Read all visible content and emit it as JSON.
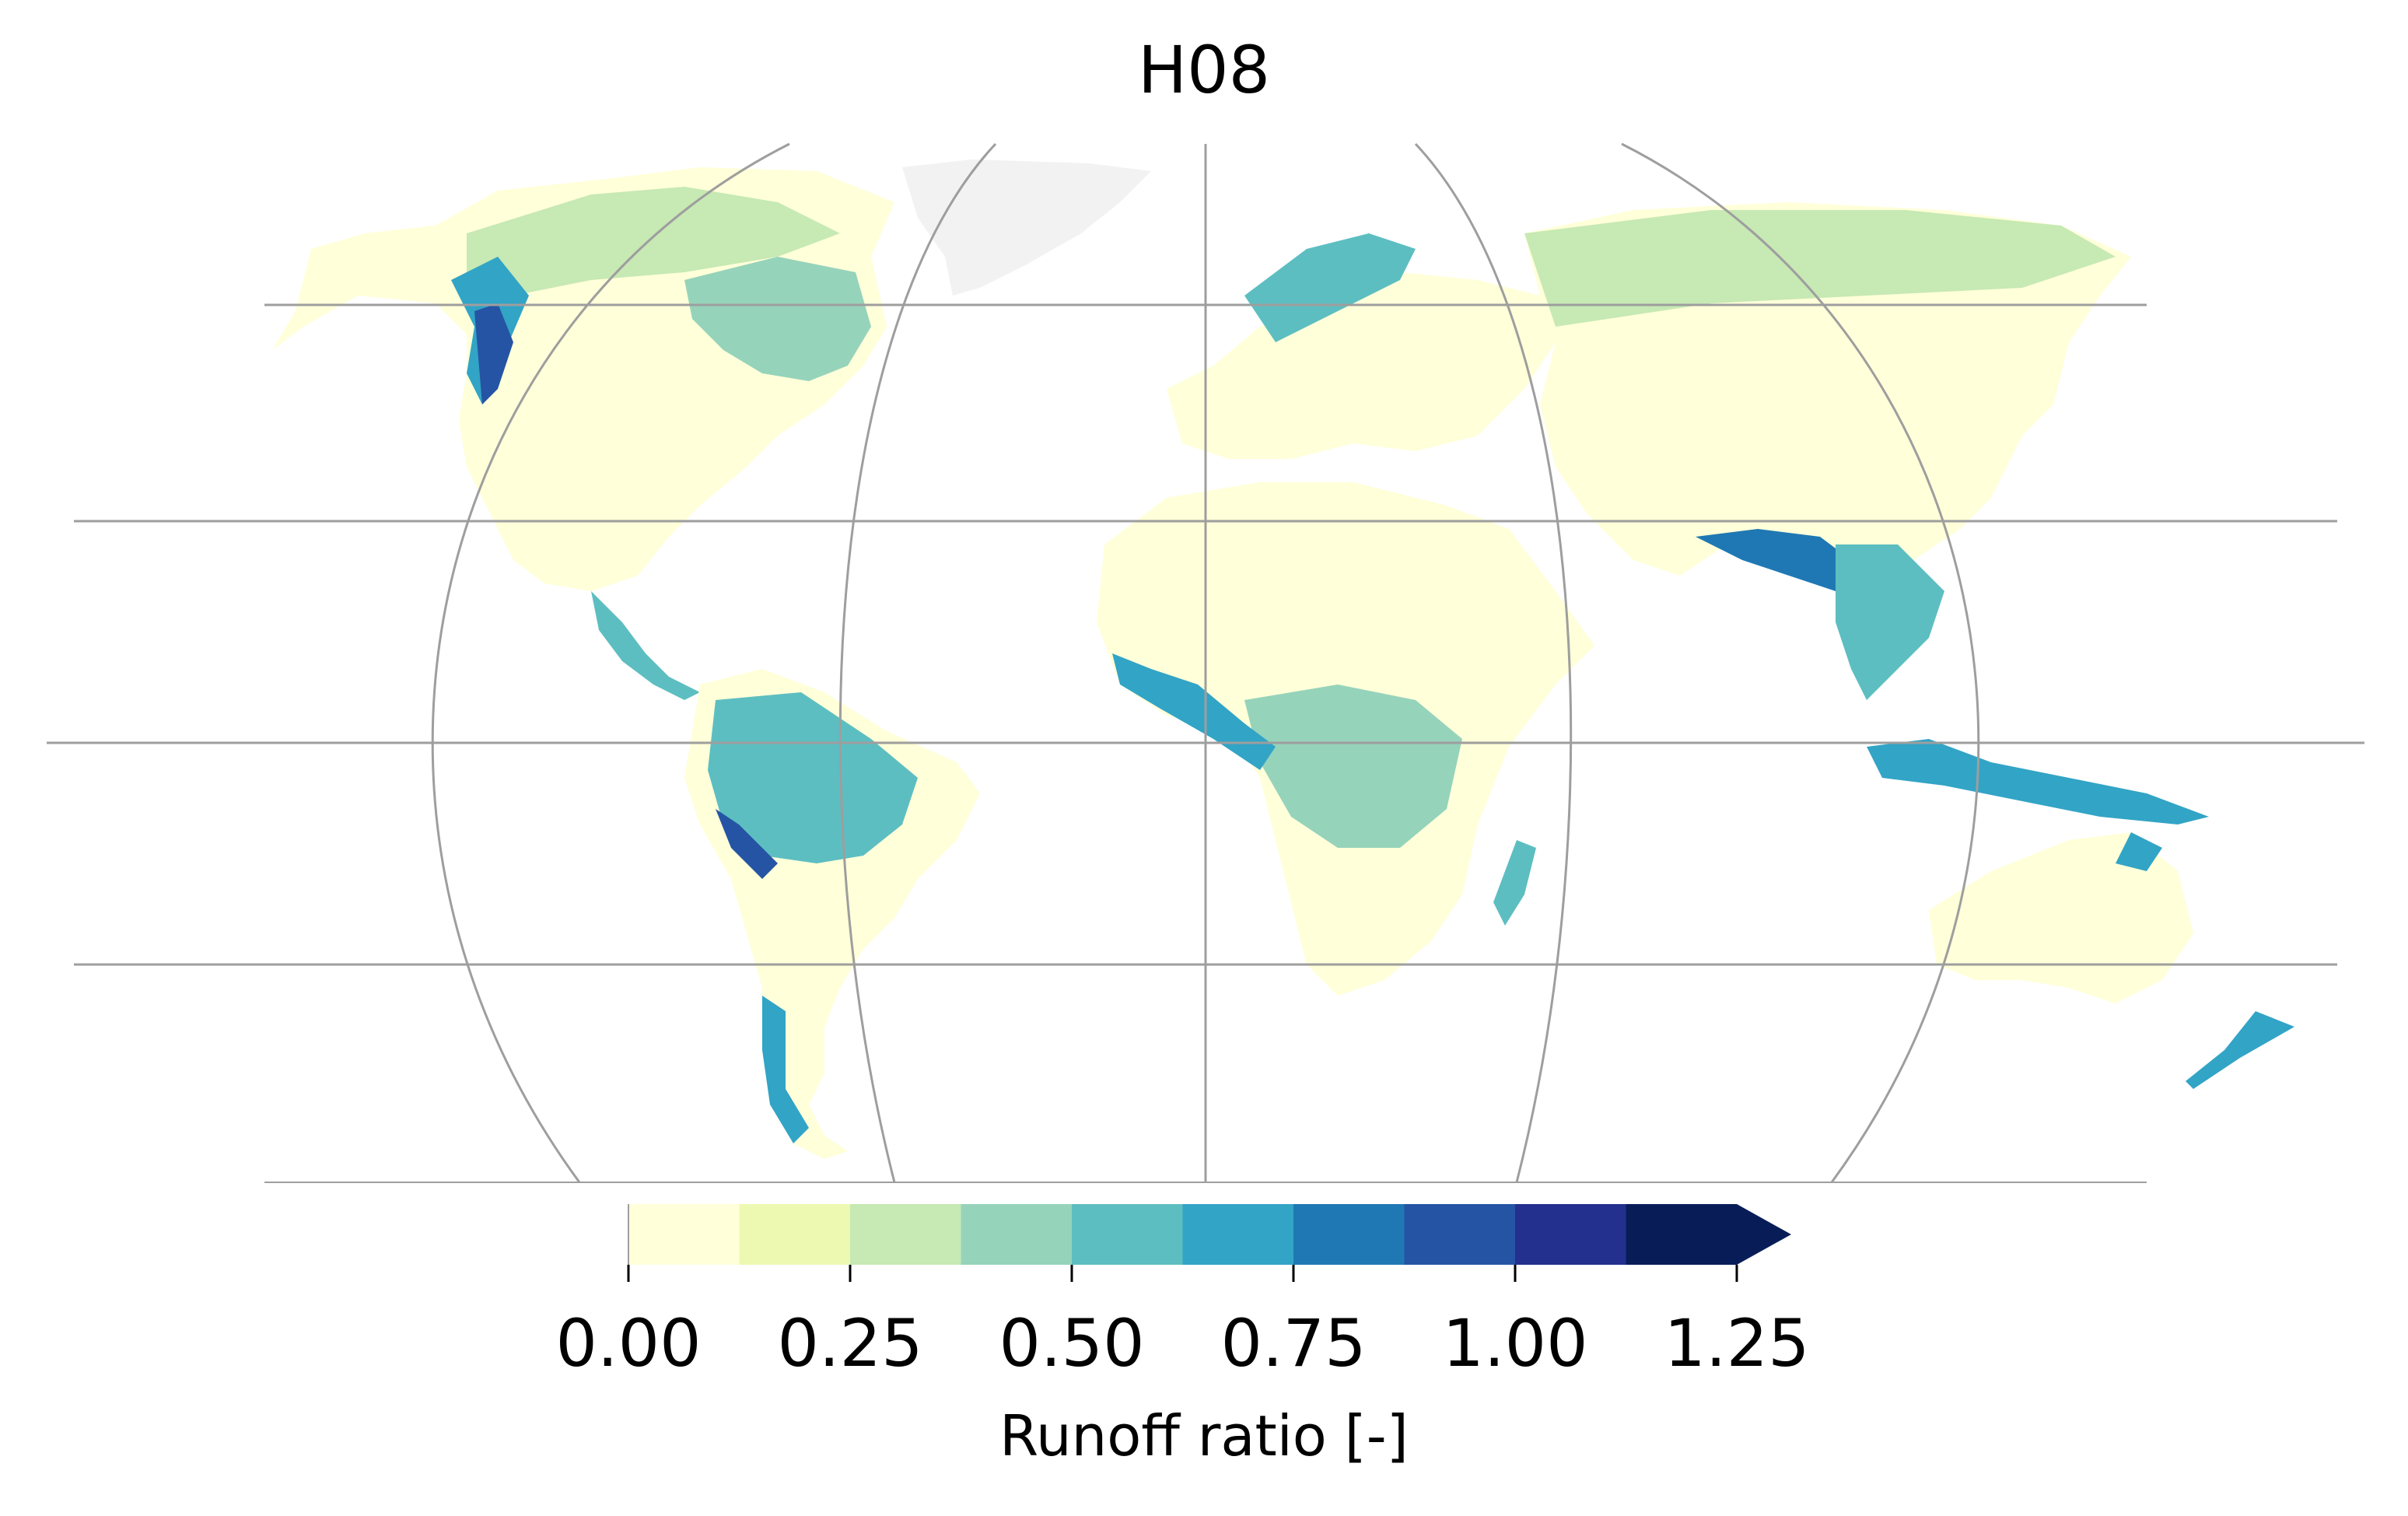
{
  "map": {
    "title": "H08",
    "colorbar": {
      "label": "Runoff ratio [-]",
      "tick_labels": [
        "0.00",
        "0.25",
        "0.50",
        "0.75",
        "1.00",
        "1.25"
      ],
      "bins": [
        0.0,
        0.125,
        0.25,
        0.375,
        0.5,
        0.625,
        0.75,
        0.875,
        1.0,
        1.125,
        1.25
      ],
      "colors": [
        "#ffffd9",
        "#edf8b1",
        "#c7e9b4",
        "#96d3bb",
        "#5dbec1",
        "#32a4c6",
        "#1f78b4",
        "#2554a4",
        "#23308e",
        "#081d58"
      ],
      "extend": "max"
    },
    "colors": {
      "grid": "#9e9e9e",
      "land_low": "#ffffd9",
      "land_high": "#081d58",
      "no_data": "#f2f2f2"
    }
  }
}
